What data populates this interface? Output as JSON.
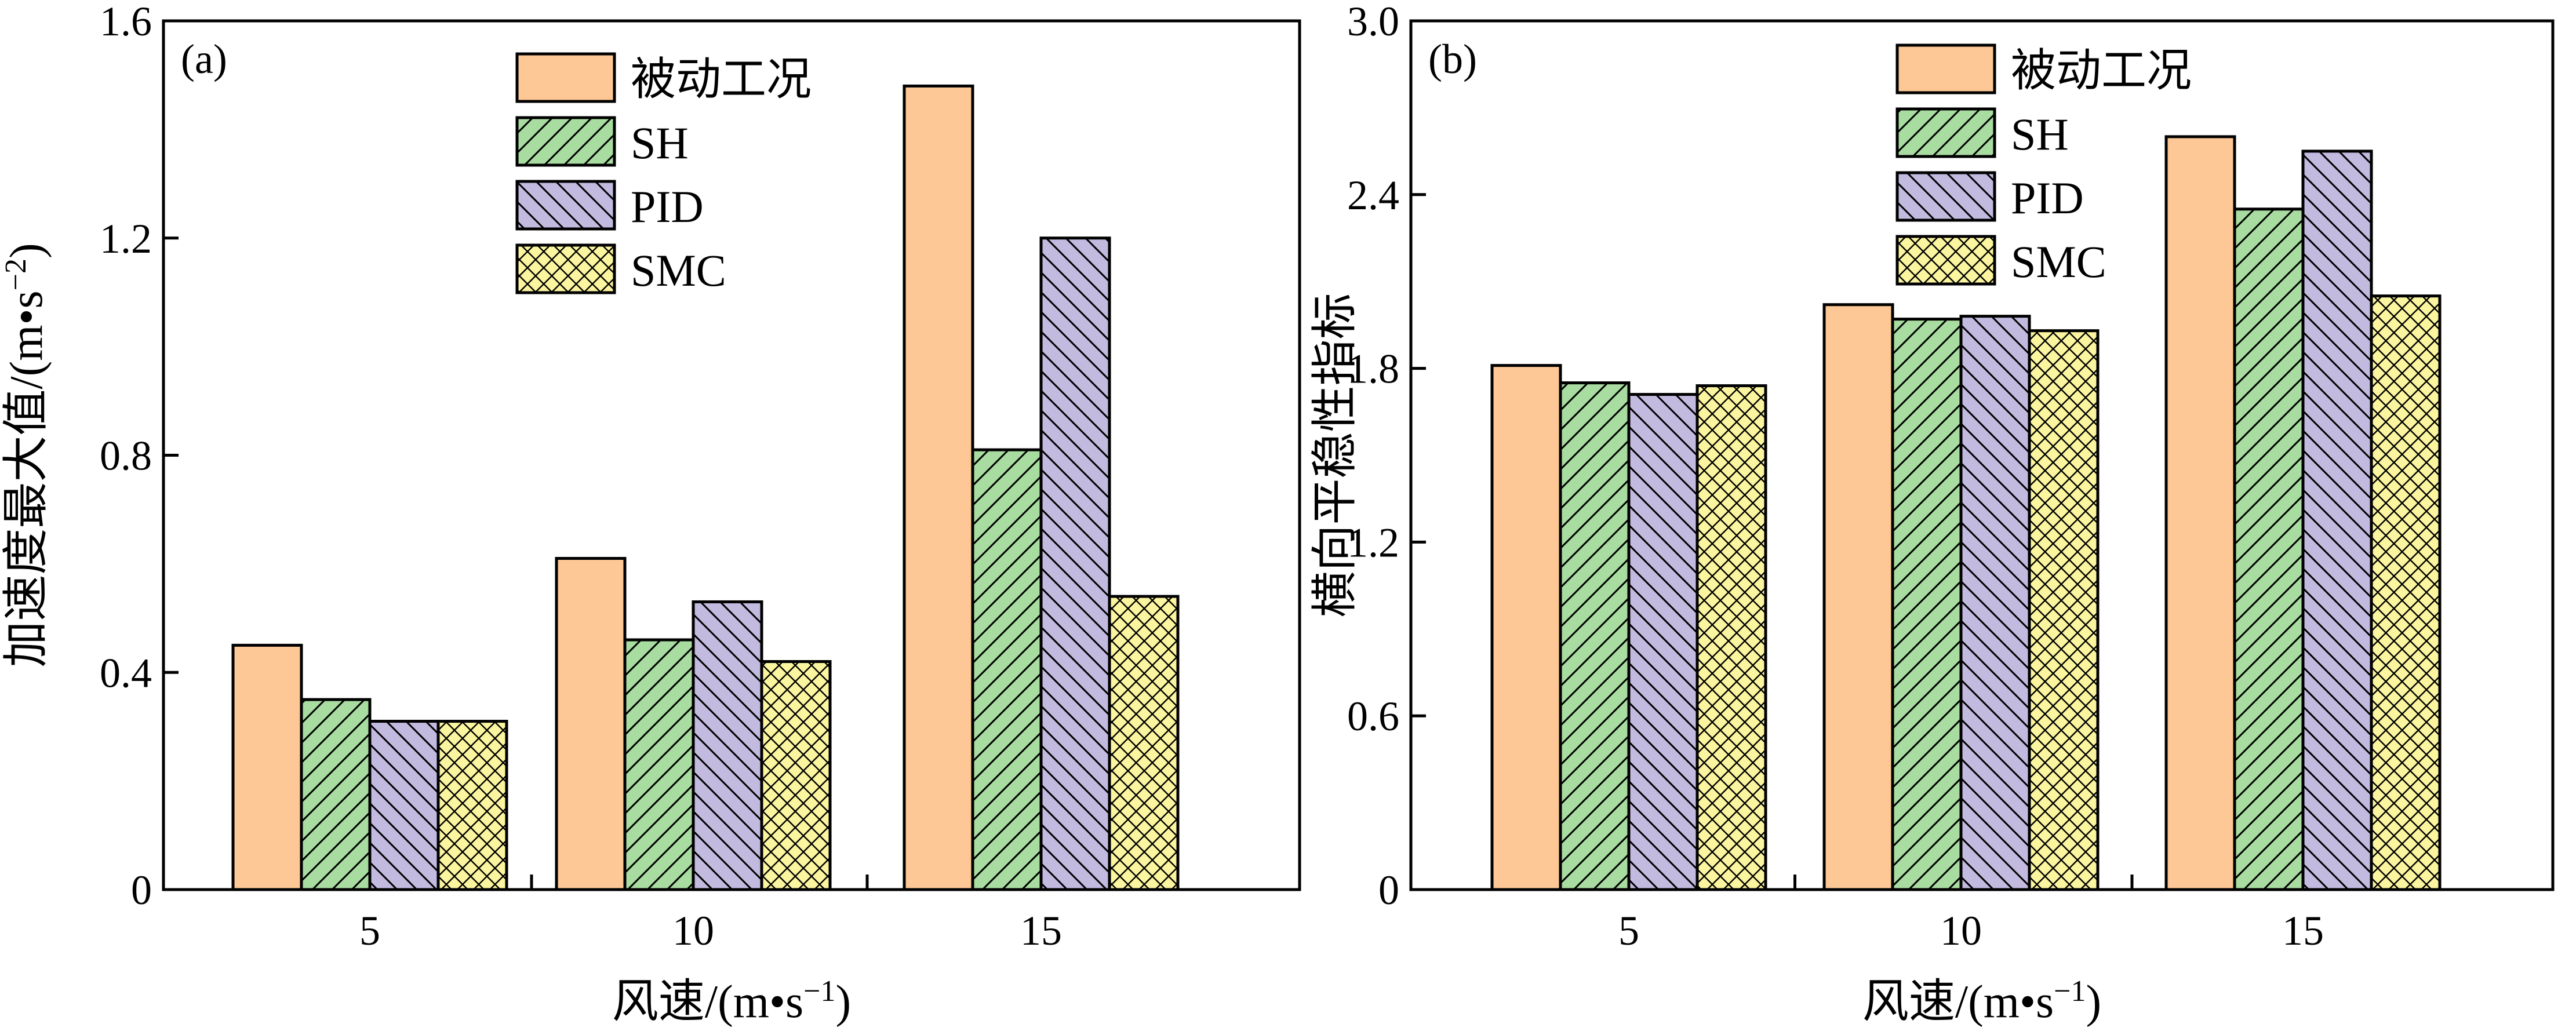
{
  "figure": {
    "series_styles": [
      {
        "name": "被动工况",
        "fill": "#FDC896",
        "pattern": "solid"
      },
      {
        "name": "SH",
        "fill": "#A8DCA0",
        "pattern": "diag-up"
      },
      {
        "name": "PID",
        "fill": "#C3BAE0",
        "pattern": "diag-down"
      },
      {
        "name": "SMC",
        "fill": "#FBF5A0",
        "pattern": "cross"
      }
    ]
  },
  "chart_data": [
    {
      "type": "bar",
      "panel": "(a)",
      "categories": [
        "5",
        "10",
        "15"
      ],
      "series": [
        {
          "name": "被动工况",
          "values": [
            0.45,
            0.61,
            1.48
          ]
        },
        {
          "name": "SH",
          "values": [
            0.35,
            0.46,
            0.81
          ]
        },
        {
          "name": "PID",
          "values": [
            0.31,
            0.53,
            1.2
          ]
        },
        {
          "name": "SMC",
          "values": [
            0.31,
            0.42,
            0.54
          ]
        }
      ],
      "xlabel": "风速/(m•s",
      "xlabel_sup": "−1",
      "xlabel_end": ")",
      "ylabel": "加速度最大值/(m•s",
      "ylabel_sup": "−2",
      "ylabel_end": ")",
      "ylim": [
        0,
        1.6
      ],
      "yticks": [
        "0",
        "0.4",
        "0.8",
        "1.2",
        "1.6"
      ],
      "legend_position": "top-center"
    },
    {
      "type": "bar",
      "panel": "(b)",
      "categories": [
        "5",
        "10",
        "15"
      ],
      "series": [
        {
          "name": "被动工况",
          "values": [
            1.81,
            2.02,
            2.6
          ]
        },
        {
          "name": "SH",
          "values": [
            1.75,
            1.97,
            2.35
          ]
        },
        {
          "name": "PID",
          "values": [
            1.71,
            1.98,
            2.55
          ]
        },
        {
          "name": "SMC",
          "values": [
            1.74,
            1.93,
            2.05
          ]
        }
      ],
      "xlabel": "风速/(m•s",
      "xlabel_sup": "−1",
      "xlabel_end": ")",
      "ylabel": "横向平稳性指标",
      "ylim": [
        0,
        3.0
      ],
      "yticks": [
        "0",
        "0.6",
        "1.2",
        "1.8",
        "2.4",
        "3.0"
      ],
      "legend_position": "top-center"
    }
  ]
}
